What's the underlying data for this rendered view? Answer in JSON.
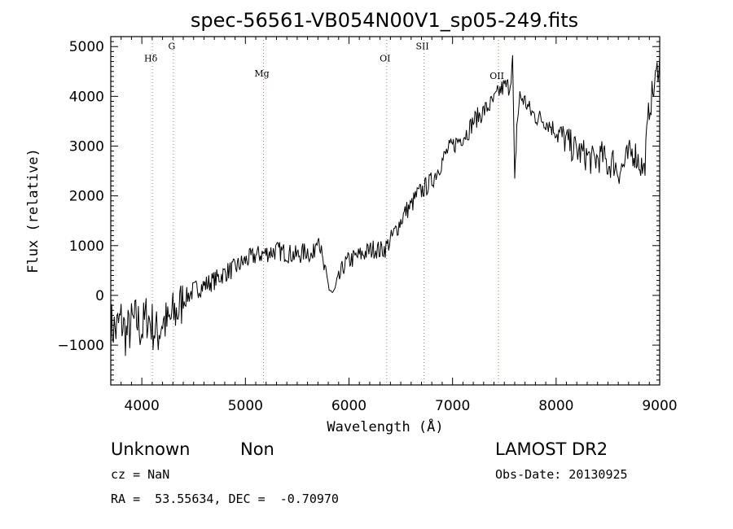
{
  "chart_data": {
    "type": "line",
    "title": "spec-56561-VB054N00V1_sp05-249.fits",
    "xlabel": "Wavelength (Å)",
    "ylabel": "Flux (relative)",
    "xlim": [
      3700,
      9000
    ],
    "ylim": [
      -1800,
      5200
    ],
    "xticks": [
      4000,
      5000,
      6000,
      7000,
      8000,
      9000
    ],
    "xtick_labels": [
      "4000",
      "5000",
      "6000",
      "7000",
      "8000",
      "9000"
    ],
    "yticks": [
      -1000,
      0,
      1000,
      2000,
      3000,
      4000,
      5000
    ],
    "ytick_labels": [
      "−1000",
      "0",
      "1000",
      "2000",
      "3000",
      "4000",
      "5000"
    ],
    "grid": false,
    "line_color": "#000000",
    "series": [
      {
        "x": [
          3700,
          3750,
          3800,
          3850,
          3900,
          3950,
          4000,
          4050,
          4100,
          4150,
          4200,
          4250,
          4300,
          4350,
          4400,
          4450,
          4500,
          4600,
          4700,
          4800,
          4900,
          5000,
          5100,
          5200,
          5300,
          5400,
          5500,
          5600,
          5650,
          5700,
          5750,
          5800,
          5850,
          5900,
          5950,
          6000,
          6050,
          6100,
          6150,
          6200,
          6250,
          6300,
          6350,
          6400,
          6450,
          6500,
          6550,
          6600,
          6650,
          6700,
          6750,
          6800,
          6850,
          6900,
          6950,
          7000,
          7050,
          7100,
          7150,
          7200,
          7250,
          7300,
          7350,
          7400,
          7450,
          7500,
          7550,
          7580,
          7600,
          7620,
          7650,
          7700,
          7750,
          7800,
          7850,
          7900,
          7950,
          8000,
          8050,
          8100,
          8150,
          8200,
          8250,
          8300,
          8350,
          8400,
          8450,
          8500,
          8550,
          8600,
          8650,
          8700,
          8750,
          8800,
          8850,
          8900,
          8950,
          9000
        ],
        "y": [
          -600,
          -700,
          -500,
          -800,
          -600,
          -500,
          -700,
          -400,
          -600,
          -800,
          -500,
          -600,
          -400,
          -300,
          -100,
          0,
          100,
          200,
          300,
          450,
          550,
          700,
          800,
          850,
          900,
          850,
          800,
          900,
          750,
          1300,
          600,
          200,
          0,
          300,
          600,
          700,
          750,
          800,
          850,
          900,
          950,
          900,
          950,
          1100,
          1300,
          1500,
          1700,
          1800,
          2000,
          2100,
          2200,
          2300,
          2500,
          2700,
          2900,
          3000,
          3100,
          3200,
          3300,
          3500,
          3600,
          3700,
          3800,
          3900,
          4100,
          4200,
          4200,
          4700,
          2200,
          3400,
          4000,
          3900,
          3700,
          3600,
          3550,
          3500,
          3400,
          3300,
          3200,
          3100,
          3000,
          2900,
          2850,
          2800,
          2700,
          2750,
          2800,
          2600,
          2700,
          2500,
          2600,
          2800,
          2900,
          2700,
          2500,
          3800,
          4200,
          4800
        ]
      }
    ],
    "line_markers": [
      {
        "label": "Hδ",
        "x": 4102,
        "color": "#888888",
        "label_y": 4700
      },
      {
        "label": "G",
        "x": 4305,
        "color": "#888888",
        "label_y": 4950
      },
      {
        "label": "Mg",
        "x": 5175,
        "color": "#cc6666",
        "label_y": 4400
      },
      {
        "label": "OI",
        "x": 6364,
        "color": "#888888",
        "label_y": 4700
      },
      {
        "label": "SII",
        "x": 6724,
        "color": "#888888",
        "label_y": 4950
      },
      {
        "label": "OII",
        "x": 7444,
        "color": "#cc6666",
        "label_y": 4350
      }
    ]
  },
  "info": {
    "class": "Unknown",
    "subclass": "Non",
    "cz": "cz = NaN",
    "coords": "RA =  53.55634, DEC =  -0.70970",
    "survey": "LAMOST DR2",
    "obs_date": "Obs-Date: 20130925"
  }
}
